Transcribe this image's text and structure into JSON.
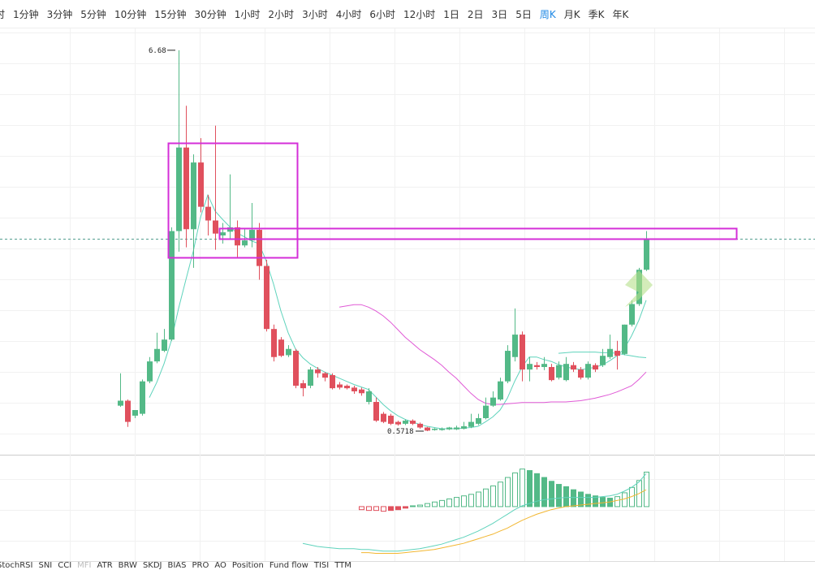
{
  "toolbar": {
    "intervals": [
      "时",
      "1分钟",
      "3分钟",
      "5分钟",
      "10分钟",
      "15分钟",
      "30分钟",
      "1小时",
      "2小时",
      "3小时",
      "4小时",
      "6小时",
      "12小时",
      "1日",
      "2日",
      "3日",
      "5日",
      "周K",
      "月K",
      "季K",
      "年K"
    ],
    "active": 17
  },
  "indicator_tabs": [
    "StochRSI",
    "SNI",
    "CCI",
    "MFI",
    "ATR",
    "BRW",
    "SKDJ",
    "BIAS",
    "PRO",
    "AO",
    "Position",
    "Fund flow",
    "TISI",
    "TTM"
  ],
  "chart_data": {
    "type": "candlestick",
    "ylim": [
      0.22,
      7.03
    ],
    "up_color": "#53b987",
    "down_color": "#e0505d",
    "candles": {
      "open": [
        0.98,
        1.06,
        0.82,
        0.85,
        1.37,
        1.69,
        1.86,
        2.04,
        3.78,
        5.12,
        3.81,
        4.88,
        4.17,
        3.95,
        3.71,
        3.77,
        3.84,
        3.55,
        3.63,
        3.8,
        3.22,
        2.21,
        2.04,
        1.79,
        1.86,
        1.34,
        1.3,
        1.56,
        1.5,
        1.47,
        1.32,
        1.3,
        1.27,
        1.24,
        1.04,
        1.04,
        0.85,
        0.82,
        0.72,
        0.69,
        0.74,
        0.69,
        0.63,
        0.59,
        0.59,
        0.6,
        0.6,
        0.61,
        0.64,
        0.69,
        0.78,
        0.98,
        1.08,
        1.37,
        1.76,
        2.12,
        1.56,
        1.63,
        1.6,
        1.6,
        1.43,
        1.39,
        1.63,
        1.56,
        1.43,
        1.63,
        1.63,
        1.76,
        1.86,
        1.81,
        2.28,
        2.61,
        3.16
      ],
      "close": [
        1.06,
        0.72,
        0.91,
        1.37,
        1.69,
        1.89,
        2.04,
        3.78,
        5.12,
        3.81,
        4.88,
        4.17,
        3.95,
        3.74,
        3.76,
        3.84,
        3.55,
        3.63,
        3.8,
        3.22,
        2.21,
        1.76,
        1.78,
        1.89,
        1.3,
        1.26,
        1.56,
        1.5,
        1.43,
        1.26,
        1.27,
        1.26,
        1.21,
        1.18,
        1.21,
        0.74,
        0.72,
        0.69,
        0.68,
        0.74,
        0.69,
        0.63,
        0.58,
        0.61,
        0.61,
        0.63,
        0.63,
        0.65,
        0.72,
        0.78,
        0.98,
        1.11,
        1.37,
        1.86,
        2.12,
        1.56,
        1.65,
        1.6,
        1.65,
        1.39,
        1.63,
        1.65,
        1.56,
        1.43,
        1.65,
        1.56,
        1.78,
        1.89,
        1.78,
        2.28,
        2.61,
        3.16,
        3.65
      ],
      "high": [
        1.5,
        1.08,
        0.91,
        1.4,
        1.76,
        2.15,
        2.21,
        3.84,
        6.68,
        5.79,
        5.01,
        5.27,
        4.36,
        5.47,
        3.91,
        4.69,
        3.95,
        3.81,
        4.23,
        3.91,
        3.32,
        2.28,
        2.08,
        1.95,
        1.89,
        1.39,
        1.6,
        1.6,
        1.52,
        1.5,
        1.36,
        1.32,
        1.3,
        1.27,
        1.26,
        1.11,
        0.88,
        0.85,
        0.74,
        0.76,
        0.76,
        0.71,
        0.64,
        0.62,
        0.63,
        0.64,
        0.66,
        0.72,
        0.85,
        0.85,
        1.11,
        1.21,
        1.43,
        1.95,
        2.54,
        2.17,
        1.76,
        1.68,
        1.76,
        1.65,
        1.69,
        1.76,
        1.68,
        1.6,
        1.69,
        1.66,
        1.89,
        2.12,
        2.02,
        2.28,
        2.67,
        3.19,
        3.78
      ],
      "low": [
        0.96,
        0.64,
        0.78,
        0.82,
        1.34,
        1.66,
        1.84,
        2.02,
        3.45,
        3.52,
        3.19,
        4.08,
        3.71,
        3.48,
        3.58,
        3.65,
        3.35,
        3.52,
        3.52,
        3.0,
        2.17,
        1.69,
        1.76,
        1.76,
        1.26,
        1.13,
        1.26,
        1.43,
        1.37,
        1.24,
        1.24,
        1.24,
        1.17,
        1.14,
        1.0,
        0.72,
        0.7,
        0.67,
        0.66,
        0.67,
        0.67,
        0.61,
        0.5718,
        0.58,
        0.58,
        0.59,
        0.59,
        0.6,
        0.62,
        0.67,
        0.76,
        0.96,
        1.06,
        1.34,
        1.69,
        1.37,
        1.37,
        1.56,
        1.55,
        1.37,
        1.4,
        1.37,
        1.52,
        1.4,
        1.4,
        1.52,
        1.6,
        1.73,
        1.56,
        1.79,
        2.25,
        2.58,
        3.14
      ]
    },
    "ma_lines": [
      {
        "color": "#5fd3bc",
        "values": [
          null,
          null,
          null,
          null,
          1.11,
          1.35,
          1.65,
          2.02,
          2.54,
          3.0,
          3.45,
          4.0,
          4.36,
          4.1,
          3.97,
          3.85,
          3.75,
          3.69,
          3.62,
          3.58,
          3.3,
          2.93,
          2.5,
          2.15,
          1.89,
          1.75,
          1.65,
          1.58,
          1.52,
          1.47,
          1.42,
          1.37,
          1.32,
          1.28,
          1.24,
          1.12,
          1.0,
          0.9,
          0.82,
          0.76,
          0.72,
          0.68,
          0.65,
          0.63,
          0.61,
          0.61,
          0.61,
          0.62,
          0.63,
          0.65,
          0.72,
          0.8,
          0.91,
          1.1,
          1.37,
          1.6,
          1.76,
          1.76,
          1.72,
          1.69,
          1.64,
          1.6,
          1.58,
          1.56,
          1.57,
          1.6,
          1.63,
          1.7,
          1.78,
          1.89,
          2.1,
          2.35,
          2.67
        ]
      },
      {
        "color": "#e05ad6",
        "values": [
          null,
          null,
          null,
          null,
          null,
          null,
          null,
          null,
          null,
          null,
          null,
          null,
          null,
          null,
          null,
          null,
          null,
          null,
          null,
          null,
          null,
          null,
          null,
          null,
          null,
          null,
          null,
          null,
          null,
          null,
          2.56,
          2.58,
          2.6,
          2.6,
          2.56,
          2.5,
          2.42,
          2.32,
          2.2,
          2.08,
          1.98,
          1.88,
          1.8,
          1.72,
          1.63,
          1.52,
          1.42,
          1.3,
          1.18,
          1.08,
          1.02,
          1.0,
          1.0,
          1.01,
          1.02,
          1.03,
          1.03,
          1.03,
          1.03,
          1.04,
          1.04,
          1.04,
          1.05,
          1.06,
          1.08,
          1.1,
          1.13,
          1.16,
          1.2,
          1.25,
          1.3,
          1.4,
          1.52
        ]
      },
      {
        "color": "#5fd3bc",
        "values": [
          null,
          null,
          null,
          null,
          null,
          null,
          null,
          null,
          null,
          null,
          null,
          null,
          null,
          null,
          null,
          null,
          null,
          null,
          null,
          null,
          null,
          null,
          null,
          null,
          null,
          null,
          null,
          null,
          null,
          null,
          null,
          null,
          null,
          null,
          null,
          null,
          null,
          null,
          null,
          null,
          null,
          null,
          null,
          null,
          null,
          null,
          null,
          null,
          null,
          null,
          null,
          null,
          null,
          null,
          null,
          null,
          null,
          null,
          null,
          null,
          1.82,
          1.83,
          1.84,
          1.84,
          1.84,
          1.84,
          1.83,
          1.83,
          1.82,
          1.8,
          1.78,
          1.76,
          1.75
        ]
      }
    ],
    "macd": {
      "ylim": [
        -7,
        5.5
      ],
      "histogram": [
        null,
        null,
        null,
        null,
        null,
        null,
        null,
        null,
        null,
        null,
        null,
        null,
        null,
        null,
        null,
        null,
        null,
        null,
        null,
        null,
        null,
        null,
        null,
        null,
        null,
        null,
        null,
        null,
        null,
        null,
        null,
        null,
        null,
        -0.4,
        -0.5,
        -0.5,
        -0.6,
        -0.5,
        -0.4,
        -0.2,
        0.1,
        0.2,
        0.4,
        0.6,
        0.8,
        1.0,
        1.2,
        1.4,
        1.6,
        1.9,
        2.3,
        2.7,
        3.2,
        3.8,
        4.4,
        4.9,
        4.7,
        4.3,
        3.8,
        3.3,
        2.9,
        2.6,
        2.2,
        1.9,
        1.6,
        1.4,
        1.2,
        1.1,
        1.3,
        1.8,
        2.5,
        3.4,
        4.5
      ],
      "lines": [
        {
          "color": "#5fd3bc",
          "values": [
            null,
            null,
            null,
            null,
            null,
            null,
            null,
            null,
            null,
            null,
            null,
            null,
            null,
            null,
            null,
            null,
            null,
            null,
            null,
            null,
            null,
            null,
            null,
            null,
            null,
            -4.8,
            -5.0,
            -5.2,
            -5.3,
            -5.4,
            -5.5,
            -5.5,
            -5.5,
            -5.6,
            -5.6,
            -5.7,
            -5.8,
            -5.8,
            -5.8,
            -5.7,
            -5.6,
            -5.5,
            -5.3,
            -5.1,
            -4.9,
            -4.6,
            -4.3,
            -4.0,
            -3.6,
            -3.2,
            -2.7,
            -2.2,
            -1.6,
            -1.0,
            -0.4,
            0.1,
            0.4,
            0.7,
            0.9,
            1.0,
            1.1,
            1.2,
            1.2,
            1.2,
            1.2,
            1.2,
            1.3,
            1.4,
            1.6,
            2.0,
            2.5,
            3.2,
            4.3
          ]
        },
        {
          "color": "#f2b630",
          "values": [
            null,
            null,
            null,
            null,
            null,
            null,
            null,
            null,
            null,
            null,
            null,
            null,
            null,
            null,
            null,
            null,
            null,
            null,
            null,
            null,
            null,
            null,
            null,
            null,
            null,
            null,
            null,
            null,
            null,
            null,
            null,
            null,
            null,
            -6.0,
            -6.0,
            -6.1,
            -6.1,
            -6.1,
            -6.1,
            -6.0,
            -5.9,
            -5.8,
            -5.7,
            -5.6,
            -5.4,
            -5.2,
            -5.0,
            -4.8,
            -4.5,
            -4.2,
            -3.9,
            -3.6,
            -3.2,
            -2.8,
            -2.3,
            -1.8,
            -1.4,
            -1.0,
            -0.7,
            -0.4,
            -0.2,
            0.0,
            0.1,
            0.2,
            0.3,
            0.4,
            0.5,
            0.6,
            0.8,
            1.0,
            1.3,
            1.7,
            2.2
          ]
        }
      ]
    }
  }
}
